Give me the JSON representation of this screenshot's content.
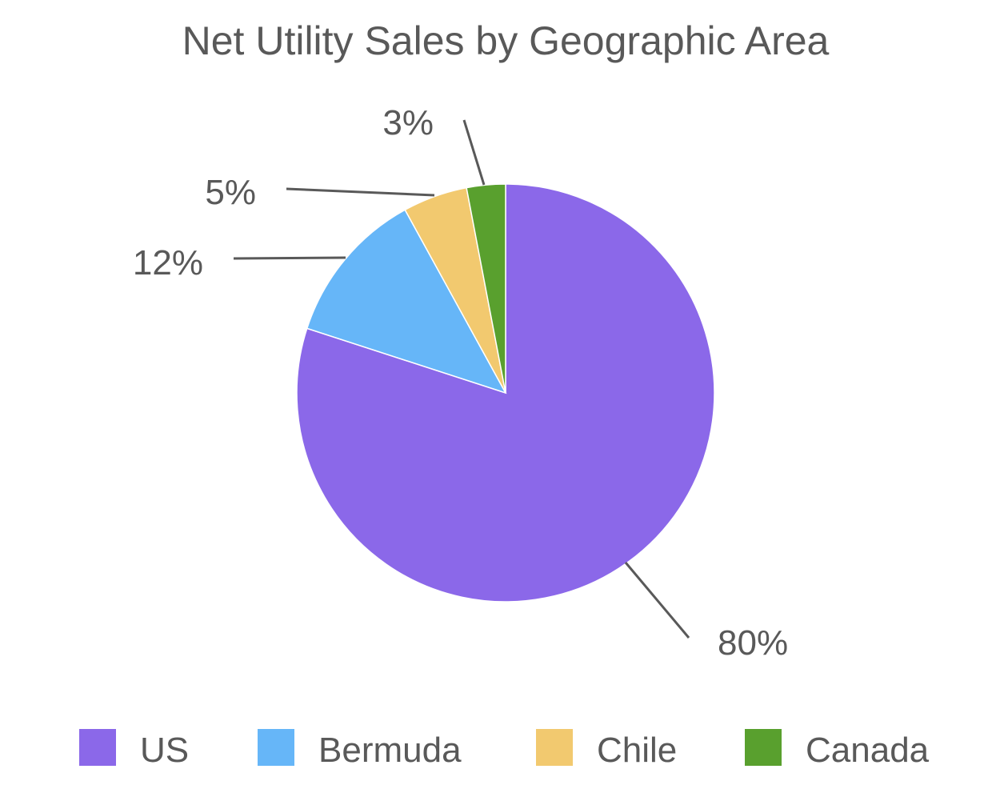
{
  "chart_data": {
    "type": "pie",
    "title": "Net Utility Sales by Geographic Area",
    "categories": [
      "US",
      "Bermuda",
      "Chile",
      "Canada"
    ],
    "values": [
      80,
      12,
      5,
      3
    ],
    "labels": [
      "80%",
      "12%",
      "5%",
      "3%"
    ],
    "colors": [
      "#8b68e9",
      "#66b6f8",
      "#f2c96f",
      "#59a02e"
    ],
    "start_angle_deg": 0,
    "direction": "clockwise",
    "legend_position": "bottom"
  }
}
